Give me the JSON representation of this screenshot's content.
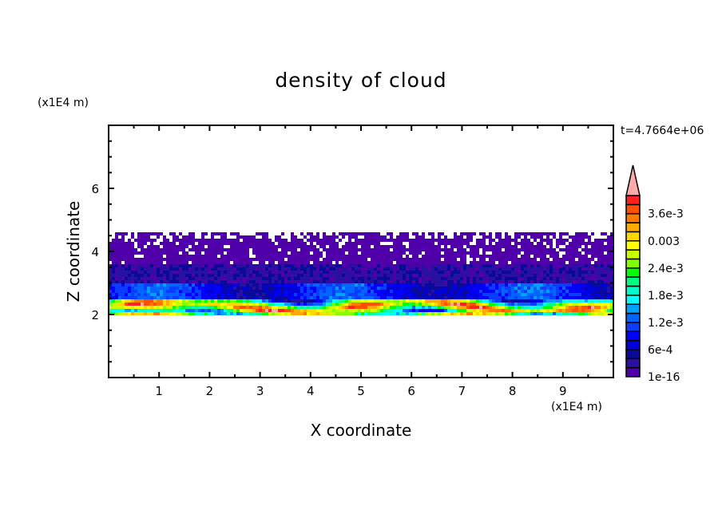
{
  "chart_data": {
    "type": "heatmap",
    "title": "density of cloud",
    "xlabel": "X coordinate",
    "ylabel": "Z coordinate",
    "x_unit": "(x1E4 m)",
    "y_unit": "(x1E4 m)",
    "time_label": "t=4.7664e+06",
    "xlim": [
      0,
      10
    ],
    "ylim": [
      0,
      8
    ],
    "x_ticks": [
      "1",
      "2",
      "3",
      "4",
      "5",
      "6",
      "7",
      "8",
      "9"
    ],
    "y_ticks": [
      "2",
      "4",
      "6"
    ],
    "grid": false,
    "cloud_layer_z": [
      2.0,
      4.6
    ],
    "colorbar": {
      "levels_min": 0,
      "level_step": 0.0002,
      "levels_max": 0.004,
      "extend": "max",
      "labels": [
        {
          "text": "1e-16",
          "level_index": 0
        },
        {
          "text": "6e-4",
          "level_index": 3
        },
        {
          "text": "1.2e-3",
          "level_index": 6
        },
        {
          "text": "1.8e-3",
          "level_index": 9
        },
        {
          "text": "2.4e-3",
          "level_index": 12
        },
        {
          "text": "0.003",
          "level_index": 15
        },
        {
          "text": "3.6e-3",
          "level_index": 18
        }
      ],
      "colors": [
        "#5000a8",
        "#2a10a0",
        "#0a0a9a",
        "#0000d8",
        "#0000ff",
        "#0a3cff",
        "#0064ff",
        "#00a0ff",
        "#00ffff",
        "#00ffc8",
        "#00ff80",
        "#00ff00",
        "#80ff00",
        "#c8ff00",
        "#ffff00",
        "#ffd700",
        "#ffaa00",
        "#ff7800",
        "#ff5000",
        "#ff2020"
      ],
      "over_color": "#ffaaaa"
    }
  }
}
